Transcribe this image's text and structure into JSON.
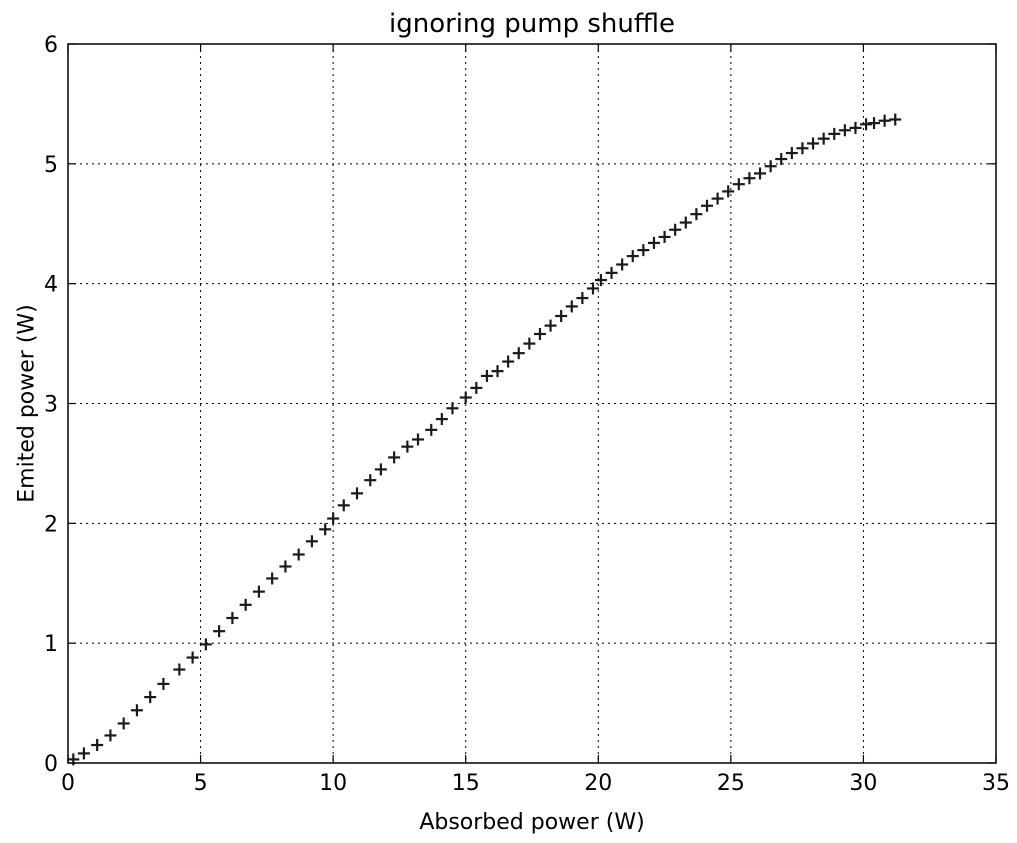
{
  "chart_data": {
    "type": "scatter",
    "title": "ignoring pump shuffle",
    "xlabel": "Absorbed power (W)",
    "ylabel": "Emited power (W)",
    "xlim": [
      0,
      35
    ],
    "ylim": [
      0,
      6
    ],
    "xticks": [
      0,
      5,
      10,
      15,
      20,
      25,
      30,
      35
    ],
    "yticks": [
      0,
      1,
      2,
      3,
      4,
      5,
      6
    ],
    "grid": true,
    "marker": "+",
    "series": [
      {
        "color": "#1a1a1a",
        "x": [
          0.2,
          0.6,
          1.1,
          1.6,
          2.1,
          2.6,
          3.1,
          3.6,
          4.2,
          4.7,
          5.2,
          5.7,
          6.2,
          6.7,
          7.2,
          7.7,
          8.2,
          8.7,
          9.2,
          9.7,
          10.0,
          10.4,
          10.9,
          11.4,
          11.8,
          12.3,
          12.8,
          13.2,
          13.7,
          14.1,
          14.5,
          15.0,
          15.4,
          15.8,
          16.2,
          16.6,
          17.0,
          17.4,
          17.8,
          18.2,
          18.6,
          19.0,
          19.4,
          19.8,
          20.1,
          20.5,
          20.9,
          21.3,
          21.7,
          22.1,
          22.5,
          22.9,
          23.3,
          23.7,
          24.1,
          24.5,
          24.9,
          25.3,
          25.7,
          26.1,
          26.5,
          26.9,
          27.3,
          27.7,
          28.1,
          28.5,
          28.9,
          29.3,
          29.7,
          30.1,
          30.4,
          30.8,
          31.2
        ],
        "y": [
          0.03,
          0.08,
          0.15,
          0.23,
          0.33,
          0.44,
          0.55,
          0.66,
          0.78,
          0.88,
          0.99,
          1.1,
          1.21,
          1.32,
          1.43,
          1.54,
          1.64,
          1.74,
          1.85,
          1.95,
          2.04,
          2.15,
          2.25,
          2.36,
          2.45,
          2.55,
          2.64,
          2.7,
          2.78,
          2.87,
          2.96,
          3.05,
          3.13,
          3.23,
          3.27,
          3.35,
          3.42,
          3.5,
          3.58,
          3.65,
          3.73,
          3.81,
          3.88,
          3.96,
          4.03,
          4.09,
          4.16,
          4.23,
          4.28,
          4.34,
          4.39,
          4.45,
          4.51,
          4.58,
          4.65,
          4.71,
          4.77,
          4.83,
          4.88,
          4.92,
          4.98,
          5.04,
          5.09,
          5.13,
          5.17,
          5.21,
          5.25,
          5.28,
          5.3,
          5.33,
          5.34,
          5.36,
          5.37
        ]
      }
    ]
  }
}
